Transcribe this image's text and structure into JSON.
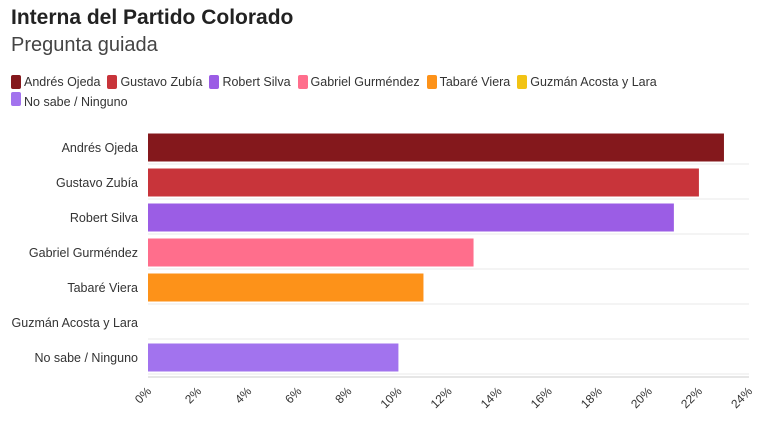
{
  "header": {
    "title": "Interna del Partido Colorado",
    "subtitle": "Pregunta guiada"
  },
  "chart_data": {
    "type": "bar",
    "orientation": "horizontal",
    "title": "Interna del Partido Colorado",
    "subtitle": "Pregunta guiada",
    "categories": [
      "Andrés Ojeda",
      "Gustavo Zubía",
      "Robert Silva",
      "Gabriel Gurméndez",
      "Tabaré Viera",
      "Guzmán Acosta y Lara",
      "No sabe / Ninguno"
    ],
    "values": [
      23,
      22,
      21,
      13,
      11,
      0,
      10
    ],
    "colors": [
      "#84181c",
      "#c8343a",
      "#9b5de5",
      "#ff6e8c",
      "#fd9219",
      "#f2c314",
      "#a273ee"
    ],
    "xlim": [
      0,
      24
    ],
    "x_ticks": [
      "0%",
      "2%",
      "4%",
      "6%",
      "8%",
      "10%",
      "12%",
      "14%",
      "16%",
      "18%",
      "20%",
      "22%",
      "24%"
    ],
    "xlabel": "",
    "ylabel": "",
    "grid": true,
    "legend_position": "top"
  }
}
